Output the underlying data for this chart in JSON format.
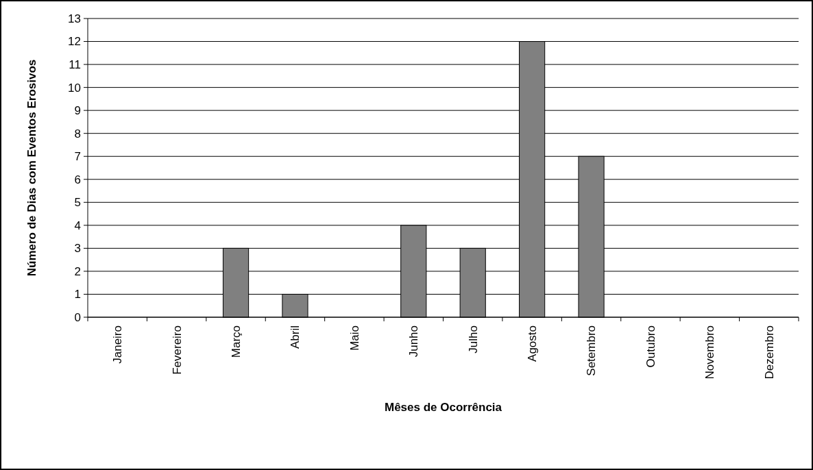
{
  "chart_data": {
    "type": "bar",
    "xlabel": "Mêses de Ocorrência",
    "ylabel": "Número de Dias com Eventos Erosivos",
    "categories": [
      "Janeiro",
      "Fevereiro",
      "Março",
      "Abril",
      "Maio",
      "Junho",
      "Julho",
      "Agosto",
      "Setembro",
      "Outubro",
      "Novembro",
      "Dezembro"
    ],
    "values": [
      0,
      0,
      3,
      1,
      0,
      4,
      3,
      12,
      7,
      0,
      0,
      0
    ],
    "color": "#808080",
    "ylim": [
      0,
      13
    ],
    "yticks": [
      0,
      1,
      2,
      3,
      4,
      5,
      6,
      7,
      8,
      9,
      10,
      11,
      12,
      13
    ],
    "grid": "y"
  }
}
